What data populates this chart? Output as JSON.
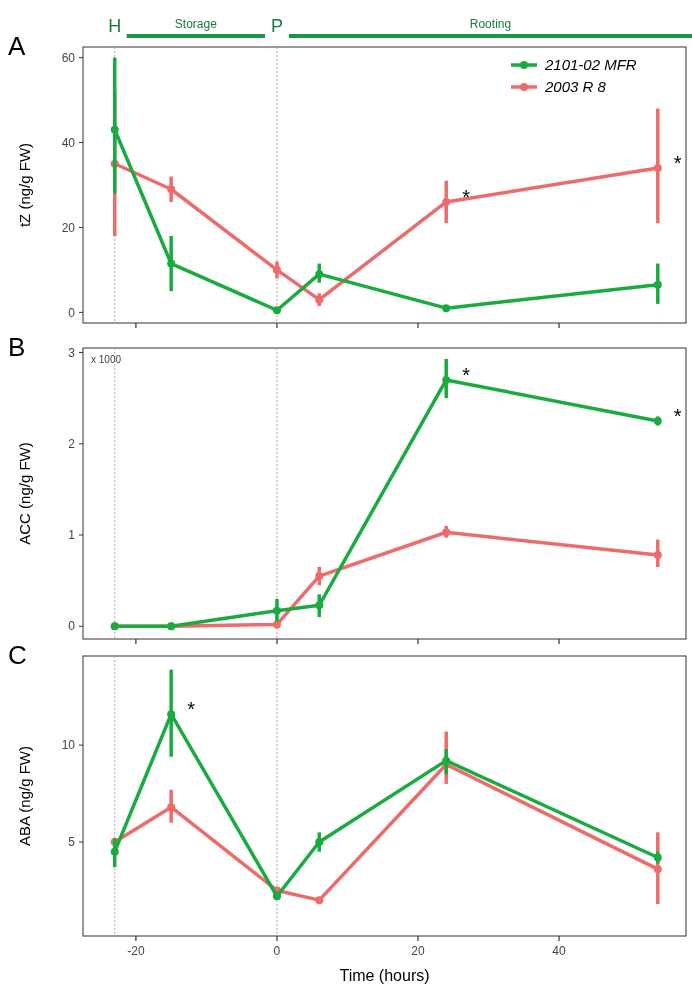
{
  "chart_data": [
    {
      "type": "line",
      "title": "A",
      "ylabel": "tZ (ng/g FW)",
      "x": [
        -23,
        -15,
        0,
        6,
        24,
        54
      ],
      "xlim": [
        -27.5,
        58
      ],
      "xticks": [
        -20,
        0,
        20,
        40
      ],
      "ylim": [
        -2.5,
        62.5
      ],
      "yticks": [
        0,
        20,
        40,
        60
      ],
      "tick_labels": "y",
      "legend": "top right",
      "marker": "circle",
      "grid": false,
      "series": [
        {
          "name": "2101-02 MFR",
          "color": "#1aab40",
          "values": [
            43,
            11.5,
            0.5,
            9,
            1,
            6.5
          ],
          "errors": [
            [
              28,
              60
            ],
            [
              5,
              18
            ],
            null,
            [
              7,
              11.5
            ],
            null,
            [
              2,
              11.5
            ]
          ]
        },
        {
          "name": "2003 R 8",
          "color": "#ee6b6b",
          "values": [
            35,
            29,
            10,
            3,
            26,
            34
          ],
          "errors": [
            [
              18,
              52
            ],
            [
              26,
              32
            ],
            [
              8,
              12
            ],
            [
              1.5,
              4.5
            ],
            [
              21,
              31
            ],
            [
              21,
              48
            ]
          ]
        }
      ],
      "ref_lines": [
        {
          "axis": "x",
          "value": -23,
          "label": "H",
          "color": "#aaaaaa",
          "line_style": "dotted"
        },
        {
          "axis": "x",
          "value": 0,
          "label": "P",
          "color": "#aaaaaa",
          "line_style": "dotted"
        }
      ],
      "annotations": [
        "Storage",
        "Rooting",
        {
          "text": "*",
          "x": 24,
          "y": 26
        },
        {
          "text": "*",
          "x": 54,
          "y": 34
        }
      ]
    },
    {
      "type": "line",
      "title": "B",
      "ylabel": "ACC (ng/g FW)",
      "x": [
        -23,
        -15,
        0,
        6,
        24,
        54
      ],
      "xlim": [
        -27.5,
        58
      ],
      "xticks": [
        -20,
        0,
        20,
        40
      ],
      "ylim": [
        -0.14,
        3.05
      ],
      "yticks": [
        0,
        1,
        2,
        3
      ],
      "tick_labels": "y",
      "marker": "circle",
      "grid": false,
      "series": [
        {
          "color": "#1aab40",
          "values": [
            0,
            0,
            0.17,
            0.23,
            2.7,
            2.25
          ],
          "errors": [
            null,
            null,
            [
              0.05,
              0.3
            ],
            [
              0.1,
              0.35
            ],
            [
              2.5,
              2.93
            ],
            [
              2.2,
              2.3
            ]
          ]
        },
        {
          "color": "#ee6b6b",
          "values": [
            0,
            0,
            0.02,
            0.55,
            1.03,
            0.78
          ],
          "errors": [
            null,
            null,
            null,
            [
              0.45,
              0.65
            ],
            [
              0.97,
              1.1
            ],
            [
              0.65,
              0.95
            ]
          ]
        }
      ],
      "ref_lines": [
        {
          "axis": "x",
          "value": -23,
          "color": "#aaaaaa",
          "line_style": "dotted"
        },
        {
          "axis": "x",
          "value": 0,
          "color": "#aaaaaa",
          "line_style": "dotted"
        }
      ],
      "annotations": [
        "x 1000",
        {
          "text": "*",
          "x": 24,
          "y": 2.7
        },
        {
          "text": "*",
          "x": 54,
          "y": 2.25
        }
      ]
    },
    {
      "type": "line",
      "title": "C",
      "xlabel": "Time (hours)",
      "ylabel": "ABA (ng/g FW)",
      "x": [
        -23,
        -15,
        0,
        6,
        24,
        54
      ],
      "xlim": [
        -27.5,
        58
      ],
      "xticks": [
        -20,
        0,
        20,
        40
      ],
      "ylim": [
        0.15,
        14.6
      ],
      "yticks": [
        5,
        10
      ],
      "marker": "circle",
      "grid": false,
      "series": [
        {
          "color": "#1aab40",
          "values": [
            4.5,
            11.6,
            2.2,
            5,
            9.2,
            4.2
          ],
          "errors": [
            [
              3.7,
              5.2
            ],
            [
              9.4,
              13.9
            ],
            null,
            [
              4.5,
              5.5
            ],
            [
              8.5,
              9.8
            ],
            [
              3.9,
              4.5
            ]
          ]
        },
        {
          "color": "#ee6b6b",
          "values": [
            5,
            6.8,
            2.5,
            2.0,
            9,
            3.6
          ],
          "errors": [
            null,
            [
              6,
              7.7
            ],
            null,
            null,
            [
              8,
              10.7
            ],
            [
              1.8,
              5.5
            ]
          ]
        }
      ],
      "ref_lines": [
        {
          "axis": "x",
          "value": -23,
          "color": "#aaaaaa",
          "line_style": "dotted"
        },
        {
          "axis": "x",
          "value": 0,
          "color": "#aaaaaa",
          "line_style": "dotted"
        }
      ],
      "annotations": [
        {
          "text": "*",
          "x": -15,
          "y": 11.6
        }
      ]
    }
  ]
}
